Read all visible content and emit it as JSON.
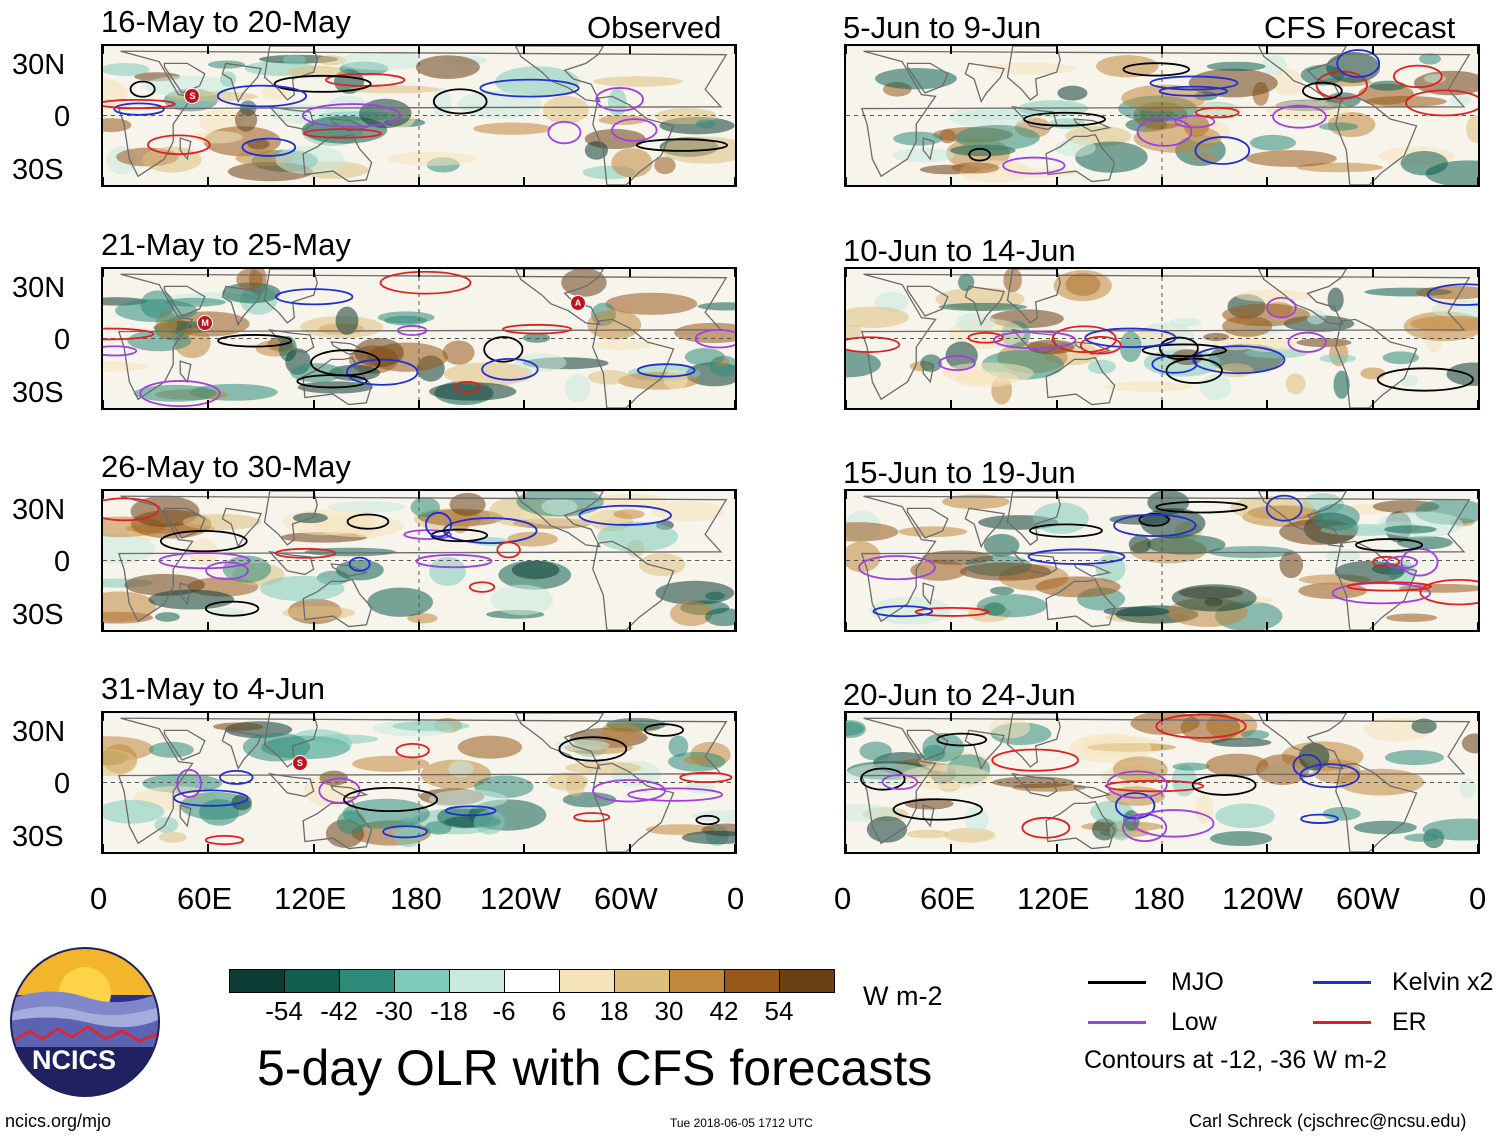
{
  "column_labels": {
    "observed": "Observed",
    "forecast": "CFS Forecast"
  },
  "panels_left": [
    {
      "title": "16-May to 20-May"
    },
    {
      "title": "21-May to 25-May"
    },
    {
      "title": "26-May to 30-May"
    },
    {
      "title": "31-May to 4-Jun"
    }
  ],
  "panels_right": [
    {
      "title": "5-Jun to 9-Jun"
    },
    {
      "title": "10-Jun to 14-Jun"
    },
    {
      "title": "15-Jun to 19-Jun"
    },
    {
      "title": "20-Jun to 24-Jun"
    }
  ],
  "lat_labels": [
    "30N",
    "0",
    "30S"
  ],
  "lon_labels": [
    "0",
    "60E",
    "120E",
    "180",
    "120W",
    "60W",
    "0"
  ],
  "colorbar": {
    "colors": [
      "#0b3d34",
      "#0f5e50",
      "#2e8b7a",
      "#7fcab9",
      "#c8eadf",
      "#ffffff",
      "#f5e4bb",
      "#dfbf7e",
      "#c1873c",
      "#97591a",
      "#6b3f14"
    ],
    "labels": [
      "-54",
      "-42",
      "-30",
      "-18",
      "-6",
      "6",
      "18",
      "30",
      "42",
      "54"
    ],
    "units": "W m-2"
  },
  "main_title": "5-day OLR with CFS forecasts",
  "legend": {
    "items": [
      {
        "label": "MJO",
        "color": "#000000"
      },
      {
        "label": "Kelvin x2",
        "color": "#1f2fd0"
      },
      {
        "label": "Low",
        "color": "#a040e0"
      },
      {
        "label": "ER",
        "color": "#e02020"
      }
    ],
    "note": "Contours at -12, -36 W m-2"
  },
  "logo_text": "NCICS",
  "footer": {
    "url": "ncics.org/mjo",
    "timestamp": "Tue 2018-06-05 1712 UTC",
    "credit": "Carl Schreck (cjschrec@ncsu.edu)"
  },
  "storm_markers": [
    "S",
    "M",
    "A",
    "S"
  ]
}
